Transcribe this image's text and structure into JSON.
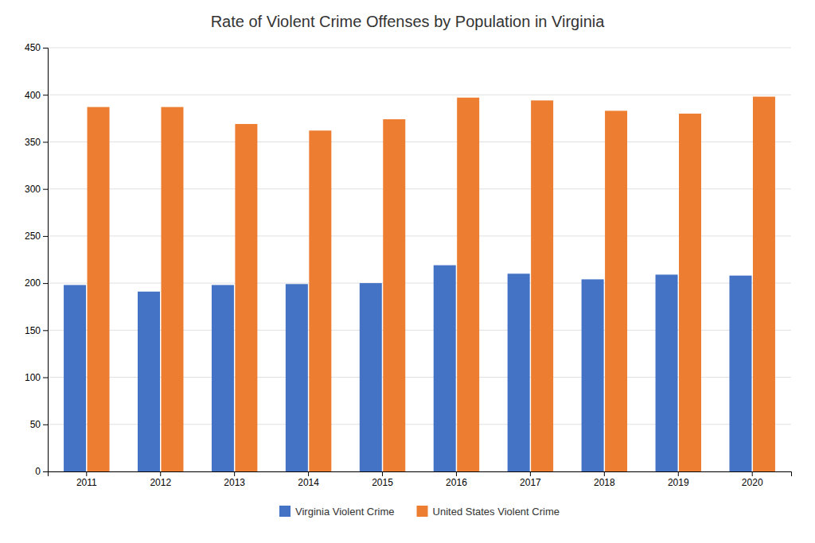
{
  "chart_data": {
    "type": "bar",
    "title": "Rate of Violent Crime Offenses by Population in Virginia",
    "categories": [
      "2011",
      "2012",
      "2013",
      "2014",
      "2015",
      "2016",
      "2017",
      "2018",
      "2019",
      "2020"
    ],
    "series": [
      {
        "name": "Virginia Violent Crime",
        "color": "#4472C4",
        "values": [
          198,
          191,
          198,
          199,
          200,
          219,
          210,
          204,
          209,
          208
        ]
      },
      {
        "name": "United States Violent Crime",
        "color": "#ED7D31",
        "values": [
          387,
          387,
          369,
          362,
          374,
          397,
          394,
          383,
          380,
          398
        ]
      }
    ],
    "ylim": [
      0,
      450
    ],
    "yticks": [
      0,
      50,
      100,
      150,
      200,
      250,
      300,
      350,
      400,
      450
    ],
    "grid": true,
    "legend": "bottom"
  }
}
